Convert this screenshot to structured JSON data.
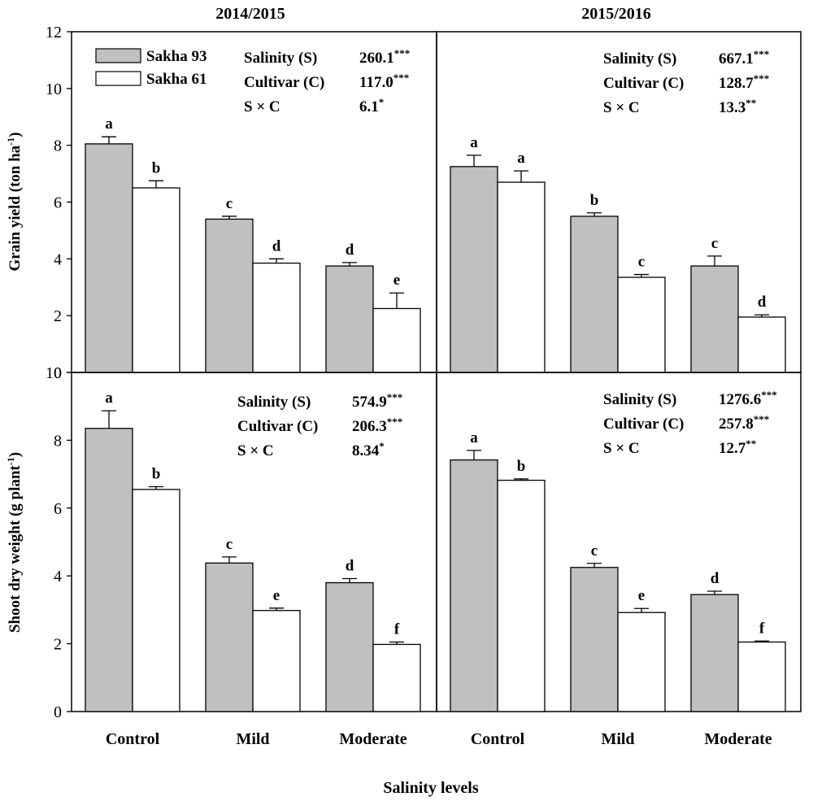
{
  "figure": {
    "xlabel": "Salinity levels",
    "col_titles": [
      "2014/2015",
      "2015/2016"
    ],
    "ylabels": [
      "Grain yield (ton ha",
      "Shoot dry weight (g plant"
    ],
    "ylabel_units_sup": "-1",
    "legend": [
      "Sakha 93",
      "Sakha 61"
    ],
    "colors": {
      "sakha93": "#c0c0c0",
      "sakha61": "#ffffff",
      "stroke": "#000000"
    }
  },
  "chart_data": [
    {
      "type": "bar",
      "panel": "grain-2014",
      "title": "2014/2015",
      "ylabel": "Grain yield (ton ha-1)",
      "ylim": [
        0,
        12
      ],
      "yticks": [
        0,
        2,
        4,
        6,
        8,
        10,
        12
      ],
      "categories": [
        "Control",
        "Mild",
        "Moderate"
      ],
      "series": [
        {
          "name": "Sakha 93",
          "values": [
            8.05,
            5.4,
            3.75
          ],
          "errors": [
            0.25,
            0.1,
            0.12
          ],
          "letters": [
            "a",
            "c",
            "d"
          ]
        },
        {
          "name": "Sakha 61",
          "values": [
            6.5,
            3.85,
            2.25
          ],
          "errors": [
            0.25,
            0.15,
            0.55
          ],
          "letters": [
            "b",
            "d",
            "e"
          ]
        }
      ],
      "anova": [
        {
          "label": "Salinity (S)",
          "value": "260.1",
          "sig": "***"
        },
        {
          "label": "Cultivar (C)",
          "value": "117.0",
          "sig": "***"
        },
        {
          "label": "S × C",
          "value": "6.1",
          "sig": "*"
        }
      ]
    },
    {
      "type": "bar",
      "panel": "grain-2015",
      "title": "2015/2016",
      "ylabel": "Grain yield (ton ha-1)",
      "ylim": [
        0,
        12
      ],
      "yticks": [
        0,
        2,
        4,
        6,
        8,
        10,
        12
      ],
      "categories": [
        "Control",
        "Mild",
        "Moderate"
      ],
      "series": [
        {
          "name": "Sakha 93",
          "values": [
            7.25,
            5.5,
            3.75
          ],
          "errors": [
            0.4,
            0.12,
            0.35
          ],
          "letters": [
            "a",
            "b",
            "c"
          ]
        },
        {
          "name": "Sakha 61",
          "values": [
            6.7,
            3.35,
            1.95
          ],
          "errors": [
            0.4,
            0.1,
            0.08
          ],
          "letters": [
            "a",
            "c",
            "d"
          ]
        }
      ],
      "anova": [
        {
          "label": "Salinity (S)",
          "value": "667.1",
          "sig": "***"
        },
        {
          "label": "Cultivar (C)",
          "value": "128.7",
          "sig": "***"
        },
        {
          "label": "S × C",
          "value": "13.3",
          "sig": "**"
        }
      ]
    },
    {
      "type": "bar",
      "panel": "shoot-2014",
      "title": "2014/2015",
      "ylabel": "Shoot dry weight (g plant-1)",
      "ylim": [
        0,
        10
      ],
      "yticks": [
        0,
        2,
        4,
        6,
        8,
        10
      ],
      "categories": [
        "Control",
        "Mild",
        "Moderate"
      ],
      "series": [
        {
          "name": "Sakha 93",
          "values": [
            8.35,
            4.38,
            3.8
          ],
          "errors": [
            0.52,
            0.18,
            0.12
          ],
          "letters": [
            "a",
            "c",
            "d"
          ]
        },
        {
          "name": "Sakha 61",
          "values": [
            6.55,
            2.98,
            1.98
          ],
          "errors": [
            0.08,
            0.07,
            0.07
          ],
          "letters": [
            "b",
            "e",
            "f"
          ]
        }
      ],
      "anova": [
        {
          "label": "Salinity (S)",
          "value": "574.9",
          "sig": "***"
        },
        {
          "label": "Cultivar (C)",
          "value": "206.3",
          "sig": "***"
        },
        {
          "label": "S × C",
          "value": "8.34",
          "sig": "*"
        }
      ]
    },
    {
      "type": "bar",
      "panel": "shoot-2015",
      "title": "2015/2016",
      "ylabel": "Shoot dry weight (g plant-1)",
      "ylim": [
        0,
        10
      ],
      "yticks": [
        0,
        2,
        4,
        6,
        8,
        10
      ],
      "categories": [
        "Control",
        "Mild",
        "Moderate"
      ],
      "series": [
        {
          "name": "Sakha 93",
          "values": [
            7.42,
            4.25,
            3.45
          ],
          "errors": [
            0.28,
            0.12,
            0.1
          ],
          "letters": [
            "a",
            "c",
            "d"
          ]
        },
        {
          "name": "Sakha 61",
          "values": [
            6.82,
            2.92,
            2.05
          ],
          "errors": [
            0.04,
            0.12,
            0.03
          ],
          "letters": [
            "b",
            "e",
            "f"
          ]
        }
      ],
      "anova": [
        {
          "label": "Salinity (S)",
          "value": "1276.6",
          "sig": "***"
        },
        {
          "label": "Cultivar (C)",
          "value": "257.8",
          "sig": "***"
        },
        {
          "label": "S × C",
          "value": "12.7",
          "sig": "**"
        }
      ]
    }
  ]
}
